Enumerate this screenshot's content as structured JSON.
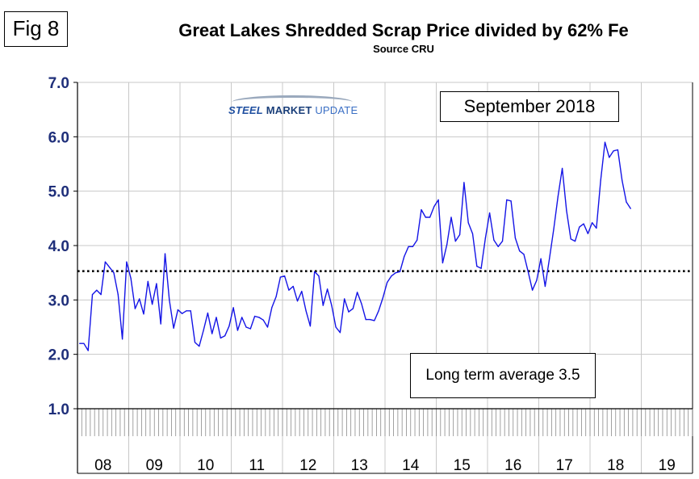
{
  "figure_label": "Fig 8",
  "logo": {
    "steel": "STEEL",
    "market": "MARKET",
    "update": "UPDATE"
  },
  "annotations": {
    "date_box": "September 2018",
    "average_box": "Long term average 3.5"
  },
  "colors": {
    "series": "#1414e6",
    "axis_text": "#1f2f7a",
    "grid": "#c8c8c8",
    "average_line": "#000000"
  },
  "chart_data": {
    "type": "line",
    "title": "Great Lakes Shredded Scrap Price divided by 62% Fe",
    "subtitle": "Source CRU",
    "xlabel": "",
    "ylabel": "",
    "ylim": [
      1.0,
      7.0
    ],
    "yticks": [
      "1.0",
      "2.0",
      "3.0",
      "4.0",
      "5.0",
      "6.0",
      "7.0"
    ],
    "year_labels": [
      "08",
      "09",
      "10",
      "11",
      "12",
      "13",
      "14",
      "15",
      "16",
      "17",
      "18",
      "19"
    ],
    "months_per_year": 12,
    "grid": true,
    "long_term_average": 3.53,
    "series": [
      {
        "name": "Shredded scrap / 62% Fe ratio",
        "start": "Jan 2008",
        "values": [
          2.2,
          2.2,
          2.07,
          3.1,
          3.18,
          3.1,
          3.7,
          3.6,
          3.5,
          3.1,
          2.28,
          3.7,
          3.4,
          2.84,
          3.02,
          2.74,
          3.34,
          2.92,
          3.3,
          2.56,
          3.85,
          3.0,
          2.48,
          2.82,
          2.75,
          2.8,
          2.8,
          2.22,
          2.15,
          2.44,
          2.76,
          2.38,
          2.68,
          2.3,
          2.34,
          2.52,
          2.86,
          2.44,
          2.68,
          2.5,
          2.47,
          2.7,
          2.68,
          2.63,
          2.5,
          2.86,
          3.06,
          3.42,
          3.44,
          3.18,
          3.25,
          2.98,
          3.16,
          2.8,
          2.52,
          3.52,
          3.44,
          2.9,
          3.2,
          2.9,
          2.5,
          2.4,
          3.02,
          2.78,
          2.84,
          3.14,
          2.93,
          2.64,
          2.64,
          2.62,
          2.8,
          3.04,
          3.32,
          3.44,
          3.5,
          3.52,
          3.8,
          3.98,
          3.98,
          4.1,
          4.66,
          4.52,
          4.52,
          4.72,
          4.84,
          3.68,
          4.02,
          4.52,
          4.08,
          4.2,
          5.16,
          4.42,
          4.22,
          3.62,
          3.58,
          4.14,
          4.6,
          4.1,
          3.98,
          4.08,
          4.84,
          4.82,
          4.14,
          3.9,
          3.84,
          3.52,
          3.18,
          3.36,
          3.76,
          3.25,
          3.76,
          4.3,
          4.9,
          5.42,
          4.64,
          4.12,
          4.08,
          4.34,
          4.4,
          4.22,
          4.42,
          4.32,
          5.2,
          5.9,
          5.62,
          5.74,
          5.76,
          5.2,
          4.8,
          4.68
        ]
      }
    ]
  }
}
